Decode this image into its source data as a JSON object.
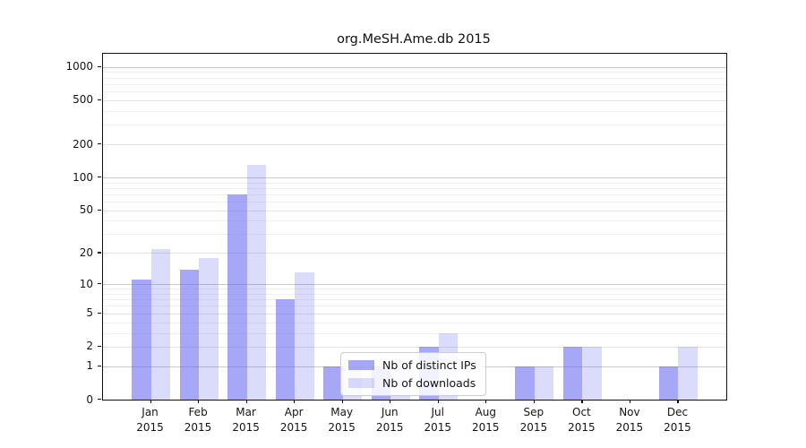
{
  "title": "org.MeSH.Ame.db 2015",
  "chart_data": {
    "type": "bar",
    "title": "org.MeSH.Ame.db 2015",
    "categories": [
      "Jan 2015",
      "Feb 2015",
      "Mar 2015",
      "Apr 2015",
      "May 2015",
      "Jun 2015",
      "Jul 2015",
      "Aug 2015",
      "Sep 2015",
      "Oct 2015",
      "Nov 2015",
      "Dec 2015"
    ],
    "months": [
      "Jan",
      "Feb",
      "Mar",
      "Apr",
      "May",
      "Jun",
      "Jul",
      "Aug",
      "Sep",
      "Oct",
      "Nov",
      "Dec"
    ],
    "year_label": "2015",
    "series": [
      {
        "name": "Nb of distinct IPs",
        "color": "rgba(101,101,241,0.57)",
        "values": [
          11,
          14,
          70,
          7,
          1,
          1,
          2,
          0,
          1,
          2,
          0,
          1
        ]
      },
      {
        "name": "Nb of downloads",
        "color": "rgba(101,101,241,0.23)",
        "values": [
          22,
          18,
          129,
          13,
          1,
          1,
          3,
          0,
          1,
          2,
          0,
          2
        ]
      }
    ],
    "bar_base_color": "#6565f1",
    "y_scale": "log1p",
    "y_ticks": [
      0,
      1,
      2,
      5,
      10,
      20,
      50,
      100,
      200,
      500,
      1000
    ],
    "y_major_grid_ticks": [
      1,
      10,
      100,
      1000
    ],
    "y_minor_ticks": [
      3,
      4,
      6,
      7,
      8,
      9,
      30,
      40,
      60,
      70,
      80,
      90,
      300,
      400,
      600,
      700,
      800,
      900
    ],
    "ylim": [
      0,
      1317
    ],
    "xlabel": "",
    "ylabel": "",
    "grid": true,
    "legend_position": "lower center"
  },
  "legend": {
    "items": [
      "Nb of distinct IPs",
      "Nb of downloads"
    ]
  }
}
